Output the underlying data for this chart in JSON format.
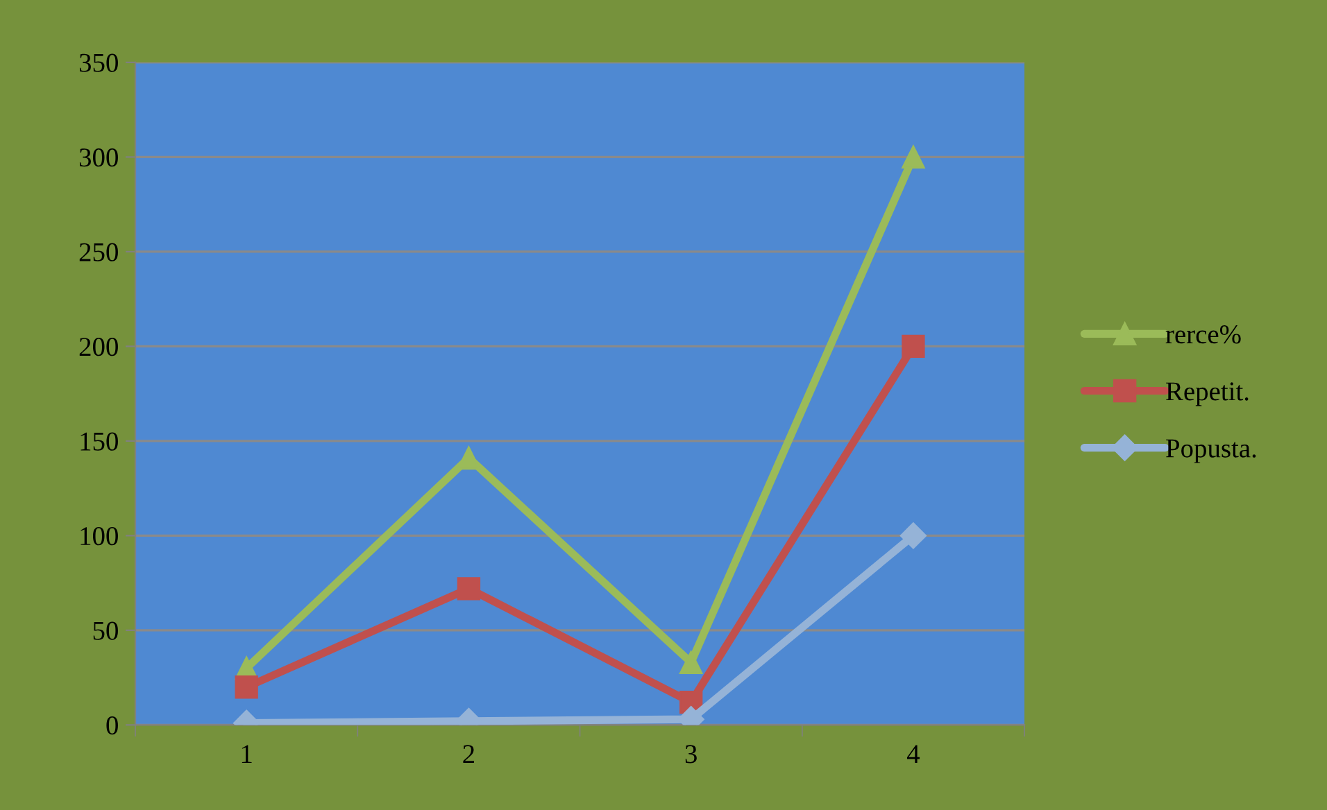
{
  "chart_data": {
    "type": "line",
    "categories": [
      "1",
      "2",
      "3",
      "4"
    ],
    "series": [
      {
        "name": "rerce%",
        "color": "#9bbb59",
        "marker": "triangle",
        "values": [
          30,
          141,
          33,
          300
        ]
      },
      {
        "name": "Repetit.",
        "color": "#c0504d",
        "marker": "square",
        "values": [
          20,
          72,
          12,
          200
        ]
      },
      {
        "name": "Popusta.",
        "color": "#95b3d7",
        "marker": "diamond",
        "values": [
          1,
          2,
          3,
          100
        ]
      }
    ],
    "ylim": [
      0,
      350
    ],
    "yticks": [
      0,
      50,
      100,
      150,
      200,
      250,
      300,
      350
    ],
    "grid": "y",
    "legend": "right",
    "line_style": "solid"
  }
}
